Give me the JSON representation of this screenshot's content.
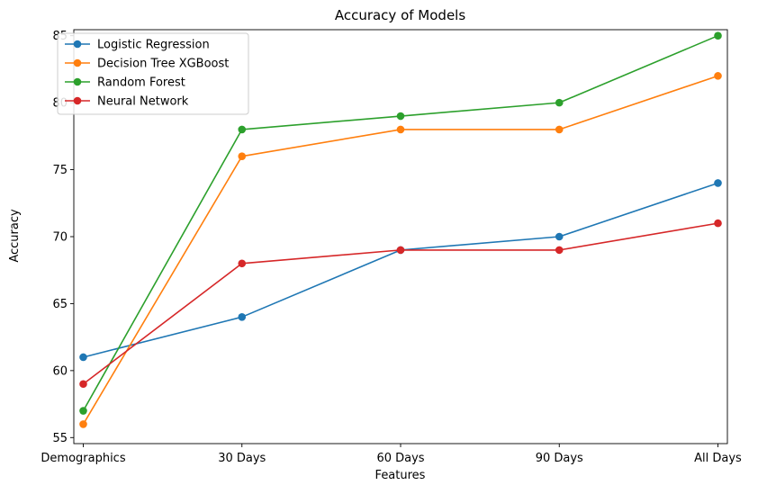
{
  "chart_data": {
    "type": "line",
    "title": "Accuracy of Models",
    "xlabel": "Features",
    "ylabel": "Accuracy",
    "categories": [
      "Demographics",
      "30 Days",
      "60 Days",
      "90 Days",
      "All Days"
    ],
    "ylim": [
      54.55,
      85.45
    ],
    "yticks": [
      55,
      60,
      65,
      70,
      75,
      80,
      85
    ],
    "grid": false,
    "legend_position": "top-left",
    "marker": "circle",
    "series": [
      {
        "name": "Logistic Regression",
        "color": "#1f77b4",
        "values": [
          61,
          64,
          69,
          70,
          74
        ]
      },
      {
        "name": "Decision Tree XGBoost",
        "color": "#ff7f0e",
        "values": [
          56,
          76,
          78,
          78,
          82
        ]
      },
      {
        "name": "Random Forest",
        "color": "#2ca02c",
        "values": [
          57,
          78,
          79,
          80,
          85
        ]
      },
      {
        "name": "Neural Network",
        "color": "#d62728",
        "values": [
          59,
          68,
          69,
          69,
          71
        ]
      }
    ]
  }
}
